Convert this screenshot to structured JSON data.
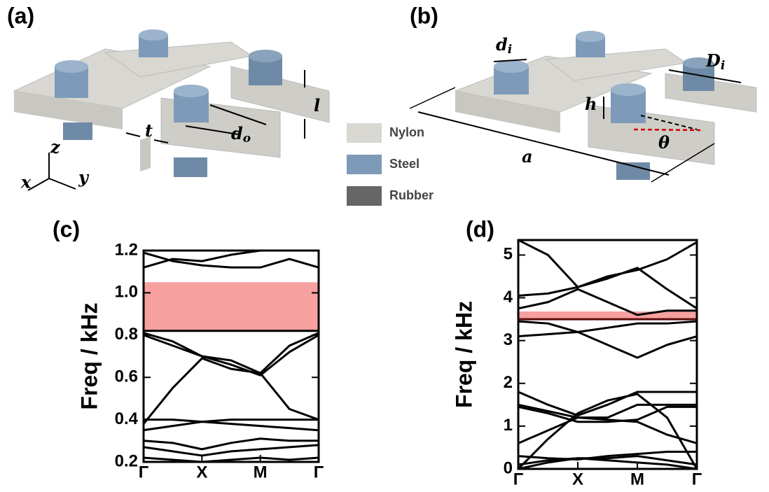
{
  "panel_labels": [
    "(a)",
    "(b)",
    "(c)",
    "(d)"
  ],
  "diagram_a": {
    "axes": [
      "z",
      "x",
      "y"
    ],
    "dims": [
      {
        "main": "t"
      },
      {
        "main": "d",
        "sub": "o"
      },
      {
        "main": "l"
      }
    ]
  },
  "diagram_b": {
    "dims": [
      {
        "main": "d",
        "sub": "i"
      },
      {
        "main": "D",
        "sub": "i"
      },
      {
        "main": "h"
      },
      {
        "main": "a"
      },
      {
        "main": "θ"
      }
    ]
  },
  "legend": [
    {
      "name": "Nylon",
      "color": "#d9d7d1"
    },
    {
      "name": "Steel",
      "color": "#7d9bb8"
    },
    {
      "name": "Rubber",
      "color": "#666666"
    }
  ],
  "chart_data": [
    {
      "type": "line",
      "ylabel": "Freq / kHz",
      "x": [
        0,
        0.5,
        1,
        1.5,
        2,
        2.5,
        3
      ],
      "xlim": [
        0,
        3
      ],
      "xticks": [
        {
          "value": 0,
          "label": "Γ"
        },
        {
          "value": 1,
          "label": "X"
        },
        {
          "value": 2,
          "label": "M"
        },
        {
          "value": 3,
          "label": "Γ"
        }
      ],
      "ylim": [
        0.2,
        1.2
      ],
      "yticks": [
        0.2,
        0.4,
        0.6,
        0.8,
        {
          "value": 1,
          "label": "1.0"
        },
        1.2
      ],
      "band_gap": [
        0.82,
        1.05
      ],
      "band_gap_color": "#f7a0a0",
      "series": [
        {
          "color": "#000000",
          "values": [
            0.22,
            0.21,
            0.2,
            0.21,
            0.22,
            0.21,
            0.22
          ]
        },
        {
          "color": "#000000",
          "values": [
            0.27,
            0.25,
            0.23,
            0.25,
            0.26,
            0.27,
            0.28
          ]
        },
        {
          "color": "#000000",
          "values": [
            0.3,
            0.29,
            0.26,
            0.29,
            0.31,
            0.3,
            0.3
          ]
        },
        {
          "color": "#000000",
          "values": [
            0.35,
            0.37,
            0.39,
            0.38,
            0.37,
            0.36,
            0.35
          ]
        },
        {
          "color": "#000000",
          "values": [
            0.4,
            0.4,
            0.39,
            0.4,
            0.4,
            0.4,
            0.4
          ]
        },
        {
          "color": "#000000",
          "values": [
            0.38,
            0.55,
            0.69,
            0.64,
            0.62,
            0.45,
            0.4
          ]
        },
        {
          "color": "#000000",
          "values": [
            0.8,
            0.75,
            0.7,
            0.66,
            0.61,
            0.72,
            0.8
          ]
        },
        {
          "color": "#000000",
          "values": [
            0.81,
            0.77,
            0.7,
            0.68,
            0.62,
            0.75,
            0.81
          ]
        },
        {
          "color": "#000000",
          "values": [
            0.82,
            0.82,
            0.82,
            0.82,
            0.82,
            0.82,
            0.82
          ]
        },
        {
          "color": "#000000",
          "values": [
            1.19,
            1.15,
            1.13,
            1.12,
            1.12,
            1.16,
            1.12
          ]
        },
        {
          "color": "#000000",
          "values": [
            1.12,
            1.16,
            1.15,
            1.18,
            1.2,
            1.2,
            1.2
          ]
        }
      ]
    },
    {
      "type": "line",
      "ylabel": "Freq / kHz",
      "x": [
        0,
        0.5,
        1,
        1.5,
        2,
        2.5,
        3
      ],
      "xlim": [
        0,
        3
      ],
      "xticks": [
        {
          "value": 0,
          "label": "Γ"
        },
        {
          "value": 1,
          "label": "X"
        },
        {
          "value": 2,
          "label": "M"
        },
        {
          "value": 3,
          "label": "Γ"
        }
      ],
      "ylim": [
        0,
        5.35
      ],
      "yticks": [
        0,
        1,
        2,
        3,
        4,
        5
      ],
      "band_gap": [
        3.48,
        3.68
      ],
      "band_gap_color": "#f7a0a0",
      "series": [
        {
          "color": "#000000",
          "values": [
            0,
            0.15,
            0.25,
            0.2,
            0.15,
            0.1,
            0
          ]
        },
        {
          "color": "#000000",
          "values": [
            0.1,
            0.2,
            0.25,
            0.25,
            0.3,
            0.2,
            0.1
          ]
        },
        {
          "color": "#000000",
          "values": [
            0.3,
            0.25,
            0.22,
            0.3,
            0.35,
            0.4,
            0.4
          ]
        },
        {
          "color": "#000000",
          "values": [
            0.6,
            0.9,
            1.2,
            1.15,
            1.1,
            0.8,
            0.6
          ]
        },
        {
          "color": "#000000",
          "values": [
            1.45,
            1.3,
            1.1,
            1.1,
            1.15,
            1.45,
            1.45
          ]
        },
        {
          "color": "#000000",
          "values": [
            1.5,
            1.35,
            1.2,
            1.2,
            1.5,
            1.5,
            1.5
          ]
        },
        {
          "color": "#000000",
          "values": [
            1.8,
            1.5,
            1.25,
            1.5,
            1.8,
            1.8,
            1.8
          ]
        },
        {
          "color": "#000000",
          "values": [
            0,
            0.7,
            1.3,
            1.6,
            1.75,
            1.2,
            0
          ]
        },
        {
          "color": "#000000",
          "values": [
            3.1,
            3.15,
            3.2,
            3.3,
            3.4,
            3.4,
            3.45
          ]
        },
        {
          "color": "#5a0a0a",
          "values": [
            3.5,
            3.5,
            3.5,
            3.5,
            3.5,
            3.5,
            3.5
          ]
        },
        {
          "color": "#000000",
          "values": [
            3.45,
            3.4,
            3.2,
            2.9,
            2.6,
            2.9,
            3.1
          ]
        },
        {
          "color": "#000000",
          "values": [
            3.75,
            3.9,
            4.2,
            3.9,
            3.6,
            3.7,
            3.7
          ]
        },
        {
          "color": "#000000",
          "values": [
            4.05,
            4.1,
            4.25,
            4.45,
            4.7,
            4.2,
            3.75
          ]
        },
        {
          "color": "#000000",
          "values": [
            5.35,
            5.0,
            4.25,
            4.5,
            4.65,
            4.9,
            5.3
          ]
        }
      ]
    }
  ]
}
